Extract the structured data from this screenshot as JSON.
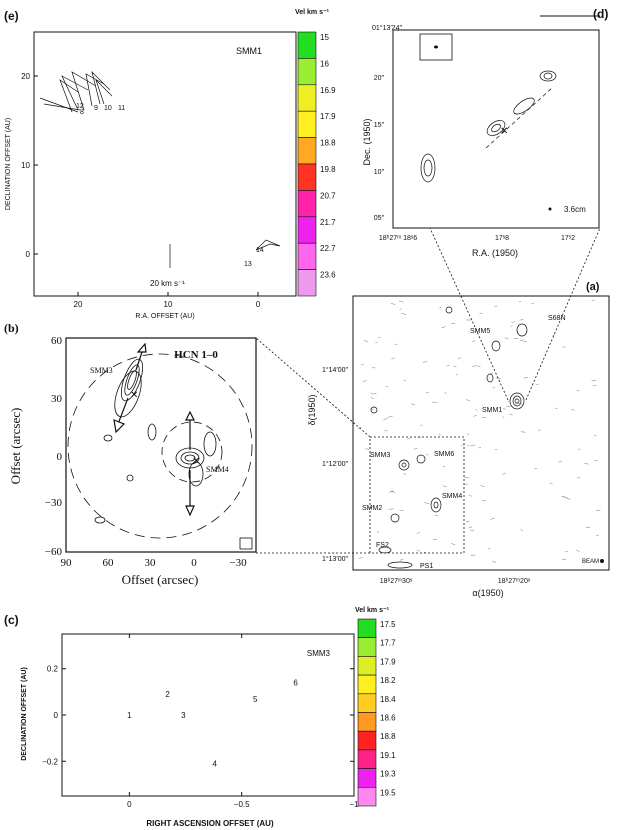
{
  "panel_e": {
    "label": "(e)",
    "source": "SMM1",
    "ylabel": "DECLINATION OFFSET (AU)",
    "xlabel": "R.A. OFFSET (AU)",
    "yticks": [
      "20",
      "10",
      "0"
    ],
    "xticks": [
      "20",
      "10",
      "0"
    ],
    "scale_label": "20 km s⁻¹",
    "colorbar_title": "Vel km s⁻¹",
    "colorbar": [
      {
        "label": "15",
        "color": "#22dd22"
      },
      {
        "label": "16",
        "color": "#99ee33"
      },
      {
        "label": "16.9",
        "color": "#eeee22"
      },
      {
        "label": "17.9",
        "color": "#ffee22"
      },
      {
        "label": "18.8",
        "color": "#ffaa22"
      },
      {
        "label": "19.8",
        "color": "#ff3322"
      },
      {
        "label": "20.7",
        "color": "#ff22aa"
      },
      {
        "label": "21.7",
        "color": "#ee22ee"
      },
      {
        "label": "22.7",
        "color": "#ff66ee"
      },
      {
        "label": "23.6",
        "color": "#ee99ee"
      }
    ],
    "spot_labels": [
      {
        "text": "12",
        "color": "#ee22aa"
      },
      {
        "text": "8",
        "color": "#ee2266"
      },
      {
        "text": "9",
        "color": "#ee2222"
      },
      {
        "text": "10",
        "color": "#ee2222"
      },
      {
        "text": "11",
        "color": "#eeaa22"
      },
      {
        "text": "13",
        "color": "#ee22ee"
      },
      {
        "text": "14",
        "color": "#ee22ee"
      }
    ]
  },
  "panel_d": {
    "label": "(d)",
    "ylabel": "Dec. (1950)",
    "xlabel": "R.A. (1950)",
    "y_header": "01°13′24″",
    "yticks": [
      "20″",
      "15″",
      "10″",
      "05″"
    ],
    "xticks": [
      "18ʰ27ᵐ 18ˢ6",
      "17ˢ8",
      "17ˢ2"
    ],
    "band": "3.6cm"
  },
  "panel_a": {
    "label": "(a)",
    "ylabel": "δ(1950)",
    "xlabel": "α(1950)",
    "yticks": [
      "1°14′00″",
      "1°12′00″",
      "1°13′00″"
    ],
    "xticks": [
      "18ʰ27ᵐ30ˢ",
      "18ʰ27ᵐ20ˢ"
    ],
    "sources": [
      "SMM5",
      "S68N",
      "SMM1",
      "SMM3",
      "SMM6",
      "SMM4",
      "SMM2",
      "FS2",
      "PS1"
    ],
    "beam": "BEAM"
  },
  "panel_b": {
    "label": "(b)",
    "line": "HCN 1–0",
    "ylabel": "Offset (arcsec)",
    "xlabel": "Offset (arcsec)",
    "yticks": [
      "60",
      "30",
      "0",
      "−30",
      "−60"
    ],
    "xticks": [
      "90",
      "60",
      "30",
      "0",
      "−30"
    ],
    "sources": [
      "SMM3",
      "SMM4"
    ]
  },
  "panel_c": {
    "label": "(c)",
    "source": "SMM3",
    "ylabel": "DECLINATION OFFSET (AU)",
    "xlabel": "RIGHT ASCENSION OFFSET (AU)",
    "yticks": [
      "0.2",
      "0",
      "−0.2"
    ],
    "xticks": [
      "0",
      "−0.5",
      "−1"
    ],
    "colorbar_title": "Vel km s⁻¹",
    "colorbar": [
      {
        "label": "17.5",
        "color": "#22dd22"
      },
      {
        "label": "17.7",
        "color": "#99ee33"
      },
      {
        "label": "17.9",
        "color": "#ddee22"
      },
      {
        "label": "18.2",
        "color": "#ffee22"
      },
      {
        "label": "18.4",
        "color": "#ffcc22"
      },
      {
        "label": "18.6",
        "color": "#ff9922"
      },
      {
        "label": "18.8",
        "color": "#ff2222"
      },
      {
        "label": "19.1",
        "color": "#ff2288"
      },
      {
        "label": "19.3",
        "color": "#ee22ee"
      },
      {
        "label": "19.5",
        "color": "#ff88ee"
      }
    ],
    "spots": [
      {
        "id": "1",
        "ra": 0.0,
        "dec": 0.0,
        "color": "#ff9922"
      },
      {
        "id": "2",
        "ra": -0.17,
        "dec": 0.09,
        "color": "#ff66ee"
      },
      {
        "id": "3",
        "ra": -0.24,
        "dec": 0.0,
        "color": "#ee2222"
      },
      {
        "id": "4",
        "ra": -0.38,
        "dec": -0.21,
        "color": "#dddd22"
      },
      {
        "id": "5",
        "ra": -0.56,
        "dec": 0.07,
        "color": "#ee2222"
      },
      {
        "id": "6",
        "ra": -0.74,
        "dec": 0.14,
        "color": "#ff66ee"
      }
    ]
  }
}
